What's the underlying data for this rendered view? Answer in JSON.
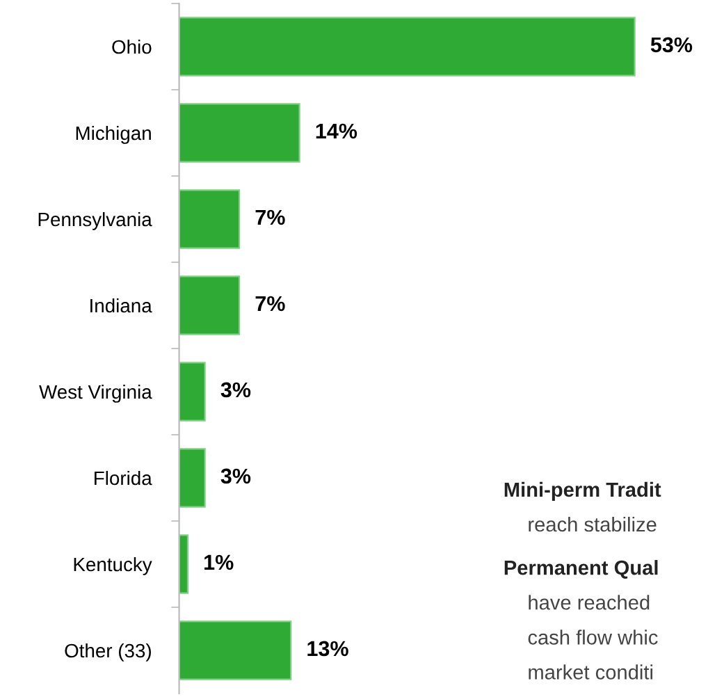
{
  "chart_data": {
    "type": "bar",
    "orientation": "horizontal",
    "categories": [
      "Ohio",
      "Michigan",
      "Pennsylvania",
      "Indiana",
      "West Virginia",
      "Florida",
      "Kentucky",
      "Other (33)"
    ],
    "values": [
      53,
      14,
      7,
      7,
      3,
      3,
      1,
      13
    ],
    "color": "#2eaa35",
    "value_labels": [
      "53%",
      "14%",
      "7%",
      "7%",
      "3%",
      "3%",
      "1%",
      "13%"
    ],
    "annotations": [
      "Mini-perm Tradit",
      "reach stabilize",
      "Permanent Qual",
      "have reached",
      "cash flow whic",
      "market conditi"
    ],
    "grid": false,
    "legend": false
  }
}
